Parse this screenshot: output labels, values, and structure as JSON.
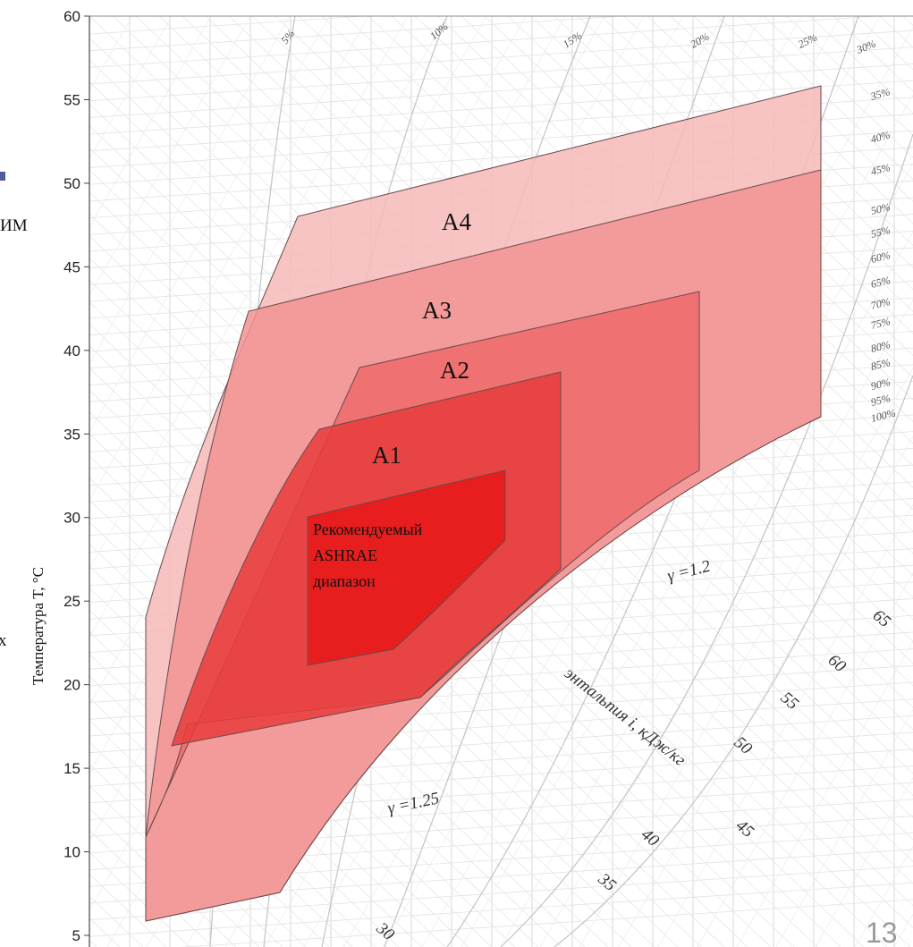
{
  "chart_data": {
    "type": "area",
    "title": "",
    "ylabel": "Температура T, °C",
    "xlabel": "энтальпия i, кДж/кг",
    "ylim": [
      5,
      60
    ],
    "y_ticks": [
      "5",
      "10",
      "15",
      "20",
      "25",
      "30",
      "35",
      "40",
      "45",
      "50",
      "55",
      "60"
    ],
    "rh_labels": [
      "5%",
      "10%",
      "15%",
      "20%",
      "25%",
      "30%",
      "35%",
      "40%",
      "45%",
      "50%",
      "55%",
      "60%",
      "65%",
      "70%",
      "75%",
      "80%",
      "85%",
      "90%",
      "95%",
      "100%"
    ],
    "enthalpy_labels": [
      "30",
      "35",
      "40",
      "45",
      "50",
      "55",
      "60",
      "65"
    ],
    "gamma_labels": [
      "γ =1.2",
      "γ =1.25"
    ],
    "grid": true,
    "zones": [
      {
        "name": "A4",
        "color": "#f6b9b9"
      },
      {
        "name": "A3",
        "color": "#f29393"
      },
      {
        "name": "A2",
        "color": "#ee6a6a"
      },
      {
        "name": "A1",
        "color": "#e83c3c"
      },
      {
        "name": "Рекомендуемый ASHRAE диапазон",
        "color": "#e81616"
      }
    ],
    "recommended_lines": [
      "Рекомендуемый",
      "ASHRAE",
      "диапазон"
    ]
  },
  "page_number": "13",
  "edge_fragments": [
    "ИМ",
    "х"
  ]
}
